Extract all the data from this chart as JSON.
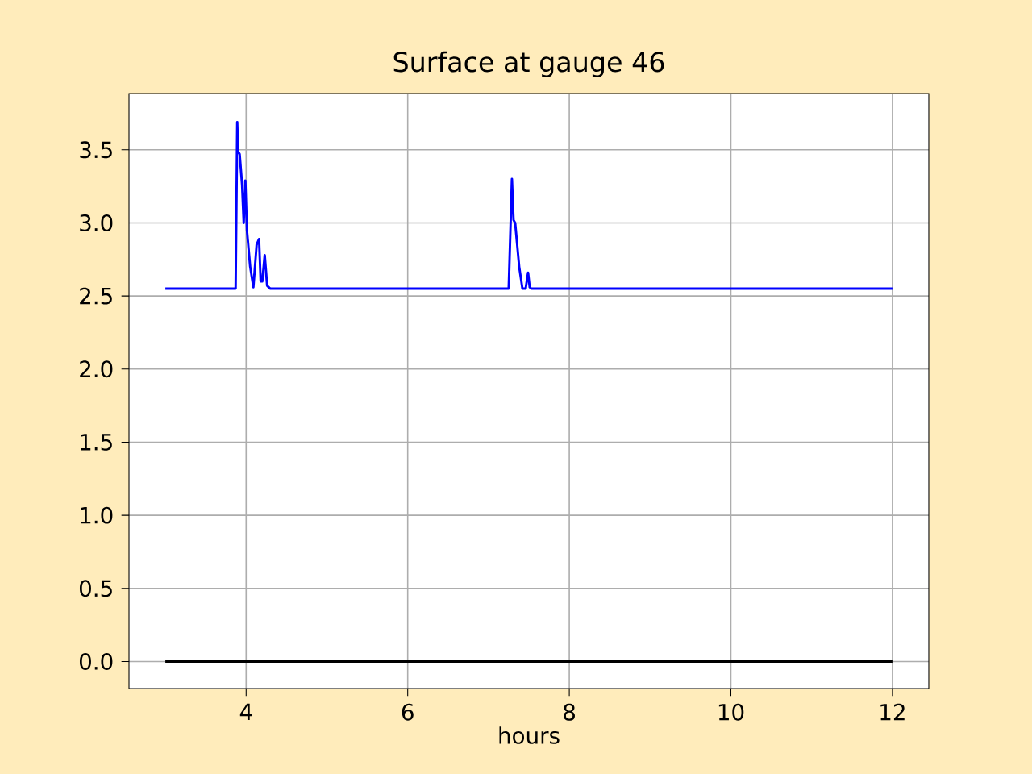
{
  "chart_data": {
    "type": "line",
    "title": "Surface at gauge 46",
    "xlabel": "hours",
    "xlim": [
      2.55,
      12.45
    ],
    "ylim": [
      -0.185,
      3.885
    ],
    "xticks": [
      4,
      6,
      8,
      10,
      12
    ],
    "yticks": [
      {
        "value": 0,
        "label": "0.0"
      },
      {
        "value": 0.5,
        "label": "0.5"
      },
      {
        "value": 1,
        "label": "1.0"
      },
      {
        "value": 1.5,
        "label": "1.5"
      },
      {
        "value": 2,
        "label": "2.0"
      },
      {
        "value": 2.5,
        "label": "2.5"
      },
      {
        "value": 3,
        "label": "3.0"
      },
      {
        "value": 3.5,
        "label": "3.5"
      }
    ],
    "grid": true,
    "series": [
      {
        "color": "#0000ff",
        "x": [
          3.0,
          3.87,
          3.89,
          3.9,
          3.92,
          3.95,
          3.97,
          3.99,
          4.01,
          4.05,
          4.09,
          4.13,
          4.16,
          4.18,
          4.2,
          4.23,
          4.26,
          4.3,
          7.25,
          7.29,
          7.31,
          7.33,
          7.38,
          7.42,
          7.46,
          7.49,
          7.51,
          7.53,
          12.0
        ],
        "values": [
          2.55,
          2.55,
          3.69,
          3.49,
          3.47,
          3.26,
          3.0,
          3.29,
          2.95,
          2.7,
          2.56,
          2.85,
          2.89,
          2.6,
          2.6,
          2.78,
          2.57,
          2.55,
          2.55,
          3.3,
          3.02,
          3.0,
          2.7,
          2.55,
          2.55,
          2.66,
          2.56,
          2.55,
          2.55
        ]
      },
      {
        "color": "#000000",
        "x": [
          3.0,
          12.0
        ],
        "values": [
          0,
          0
        ]
      }
    ]
  }
}
